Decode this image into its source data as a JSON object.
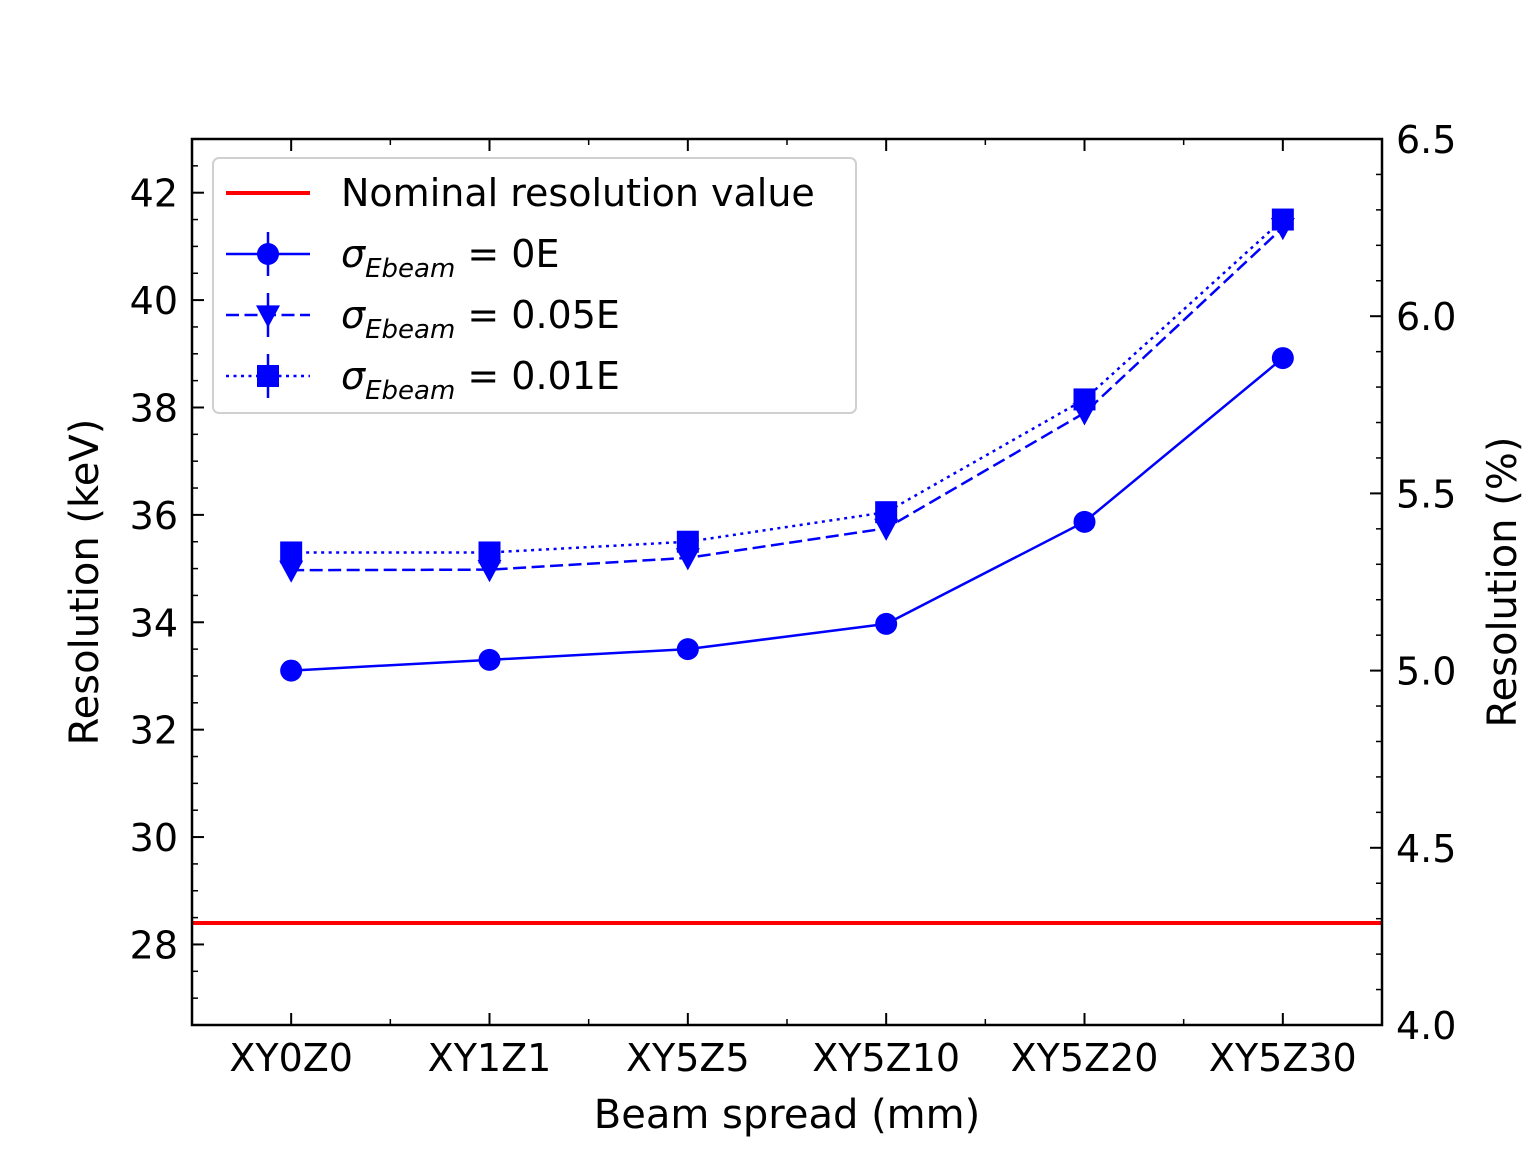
{
  "chart_data": {
    "type": "line",
    "xlabel": "Beam spread (mm)",
    "ylabel": "Resolution (keV)",
    "ylabel_right": "Resolution (%)",
    "categories": [
      "XY0Z0",
      "XY1Z1",
      "XY5Z5",
      "XY5Z10",
      "XY5Z20",
      "XY5Z30"
    ],
    "ylim": [
      26.5,
      43.0
    ],
    "ylim_right": [
      4.0,
      6.5
    ],
    "yticks": [
      "28",
      "30",
      "32",
      "34",
      "36",
      "38",
      "40",
      "42"
    ],
    "yticks_right": [
      "4.0",
      "4.5",
      "5.0",
      "5.5",
      "6.0",
      "6.5"
    ],
    "reference_line": {
      "name": "Nominal resolution value",
      "y": 28.4,
      "color": "#ff0000"
    },
    "series": [
      {
        "name": "σEbeam = 0E",
        "name_main": "σ",
        "name_sub": "Ebeam",
        "name_tail": " = 0E",
        "values": [
          33.1,
          33.3,
          33.5,
          33.97,
          35.87,
          38.92
        ],
        "marker": "circle",
        "dash": "solid",
        "color": "#0000ff"
      },
      {
        "name": "σEbeam = 0.05E",
        "name_main": "σ",
        "name_sub": "Ebeam",
        "name_tail": " = 0.05E",
        "values": [
          34.97,
          34.98,
          35.2,
          35.75,
          37.9,
          41.35
        ],
        "marker": "triangle-down",
        "dash": "dashed",
        "color": "#0000ff"
      },
      {
        "name": "σEbeam = 0.01E",
        "name_main": "σ",
        "name_sub": "Ebeam",
        "name_tail": " = 0.01E",
        "values": [
          35.3,
          35.3,
          35.5,
          36.05,
          38.15,
          41.5
        ],
        "marker": "square",
        "dash": "dotted",
        "color": "#0000ff"
      }
    ],
    "grid": false,
    "legend_position": "top-left"
  }
}
